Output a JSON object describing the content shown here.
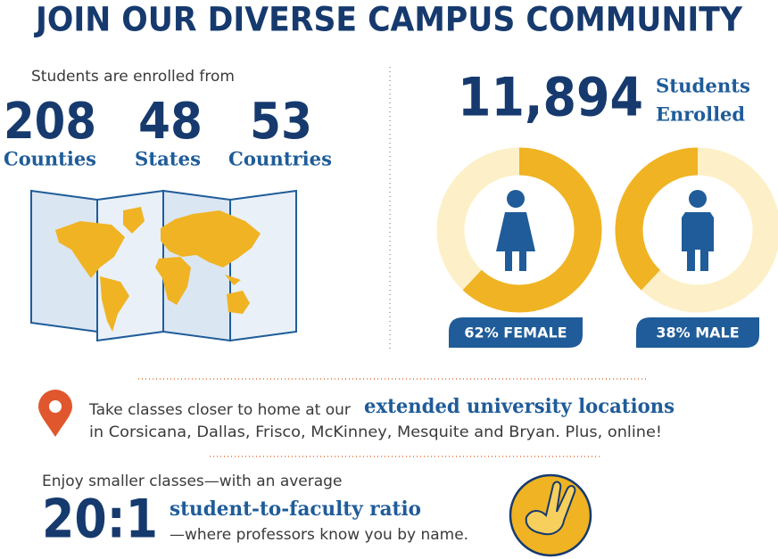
{
  "title": "JOIN OUR DIVERSE CAMPUS COMMUNITY",
  "enrolled_from": {
    "intro": "Students are enrolled from",
    "stats": [
      {
        "number": "208",
        "label": "Counties"
      },
      {
        "number": "48",
        "label": "States"
      },
      {
        "number": "53",
        "label": "Countries"
      }
    ]
  },
  "enrollment": {
    "number": "11,894",
    "label_lines": [
      "Students",
      "Enrolled"
    ]
  },
  "gender": [
    {
      "value": 62,
      "label": "62% FEMALE"
    },
    {
      "value": 38,
      "label": "38% MALE"
    }
  ],
  "locations": {
    "lead": "Take classes closer to home at our",
    "highlight": "extended university locations",
    "detail": "in Corsicana, Dallas, Frisco, McKinney, Mesquite and Bryan. Plus, online!"
  },
  "ratio": {
    "lead": "Enjoy smaller classes—with an average",
    "number": "20:1",
    "highlight": "student-to-faculty ratio",
    "detail": "—where professors know you by name."
  }
}
